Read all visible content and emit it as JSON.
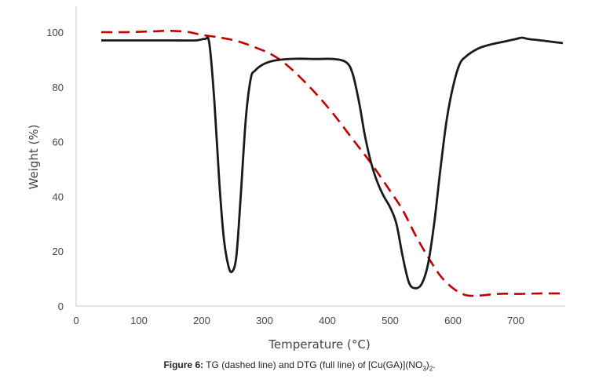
{
  "chart_data": {
    "type": "line",
    "xlabel": "Temperature (°C)",
    "ylabel": "Weight (%)",
    "xlim": [
      0,
      780
    ],
    "ylim": [
      0,
      110
    ],
    "x_ticks": [
      0,
      100,
      200,
      300,
      400,
      500,
      600,
      700
    ],
    "y_ticks": [
      0,
      20,
      40,
      60,
      80,
      100
    ],
    "grid": false,
    "legend": "none",
    "series": [
      {
        "style": "dashed",
        "color": "#c00000",
        "x": [
          40,
          80,
          120,
          150,
          180,
          200,
          230,
          260,
          290,
          310,
          330,
          350,
          380,
          410,
          440,
          470,
          500,
          520,
          540,
          560,
          580,
          600,
          620,
          640,
          660,
          680,
          700,
          720,
          740,
          775
        ],
        "y": [
          100,
          100,
          100.3,
          100.5,
          100,
          99,
          98,
          96.5,
          94,
          92,
          89,
          85,
          78,
          70,
          61,
          52,
          42,
          35,
          26,
          18,
          11,
          6.5,
          4,
          3.8,
          4.2,
          4.5,
          4.4,
          4.5,
          4.6,
          4.6
        ]
      },
      {
        "style": "solid",
        "color": "#1a1a1a",
        "x": [
          40,
          100,
          150,
          190,
          205,
          212,
          220,
          228,
          235,
          242,
          248,
          255,
          262,
          270,
          278,
          285,
          300,
          320,
          350,
          380,
          410,
          430,
          440,
          450,
          460,
          470,
          480,
          490,
          500,
          510,
          520,
          530,
          540,
          550,
          560,
          570,
          580,
          590,
          600,
          610,
          620,
          640,
          660,
          680,
          700,
          710,
          720,
          740,
          775
        ],
        "y": [
          97,
          97,
          97,
          97,
          97.5,
          96,
          75,
          45,
          25,
          15,
          12.5,
          18,
          40,
          68,
          83,
          86,
          88.5,
          89.8,
          90.3,
          90.2,
          90.2,
          89,
          85,
          75,
          62,
          52,
          45,
          40,
          36,
          30,
          18,
          8.5,
          6.5,
          8,
          15,
          30,
          50,
          68,
          80,
          88,
          91,
          94,
          95.5,
          96.5,
          97.5,
          98,
          97.5,
          97,
          96
        ]
      }
    ],
    "caption": {
      "label": "Figure 6:",
      "text": " TG (dashed line) and DTG (full line) of [Cu(GA)](NO",
      "sub1": "3",
      "mid": ")",
      "sub2": "2",
      "end": "."
    }
  }
}
